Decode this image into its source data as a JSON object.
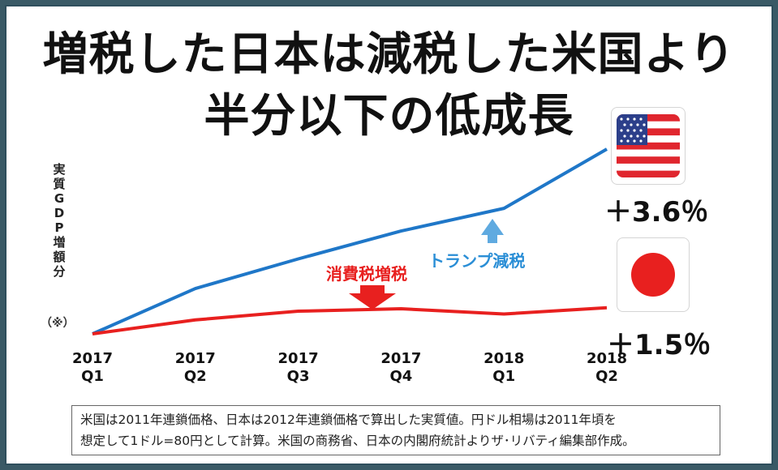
{
  "title_line1": "増税した日本は減税した米国より",
  "title_line2": "半分以下の低成長",
  "ylabel": "実質GDP増額分",
  "note_mark": "（※）",
  "annotations": {
    "tax_increase": "消費税増税",
    "tax_cut": "トランプ減税"
  },
  "colors": {
    "us": "#1f77c8",
    "japan": "#e8201f",
    "tax_increase": "#e8201f",
    "tax_cut": "#2a8ed6"
  },
  "flags": {
    "us_icon": "us-flag-icon",
    "japan_icon": "japan-flag-icon"
  },
  "footnote": {
    "line1": "米国は2011年連鎖価格、日本は2012年連鎖価格で算出した実質値。円ドル相場は2011年頃を",
    "line2": "想定して1ドル=80円として計算。米国の商務省、日本の内閣府統計よりザ･リバティ編集部作成。"
  },
  "chart_data": {
    "type": "line",
    "categories": [
      "2017 Q1",
      "2017 Q2",
      "2017 Q3",
      "2017 Q4",
      "2018 Q1",
      "2018 Q2"
    ],
    "x_tick_labels": [
      [
        "2017",
        "Q1"
      ],
      [
        "2017",
        "Q2"
      ],
      [
        "2017",
        "Q3"
      ],
      [
        "2017",
        "Q4"
      ],
      [
        "2018",
        "Q1"
      ],
      [
        "2018",
        "Q2"
      ]
    ],
    "series": [
      {
        "key": "us",
        "values": [
          0,
          1.3,
          2.15,
          2.95,
          3.6,
          5.3
        ],
        "end_label": "＋3.6％"
      },
      {
        "key": "japan",
        "values": [
          0,
          0.4,
          0.65,
          0.72,
          0.57,
          0.75
        ],
        "end_label": "＋1.5％"
      }
    ],
    "ylim": [
      0,
      5.3
    ],
    "grid": false,
    "legend": "none"
  }
}
